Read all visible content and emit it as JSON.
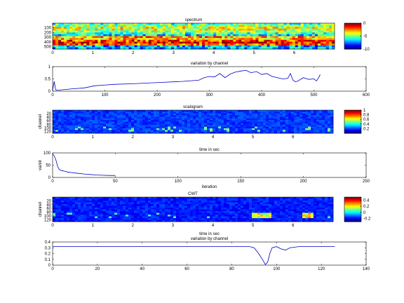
{
  "chart_data": [
    {
      "id": "spectrum",
      "type": "heatmap",
      "title": "spectrum",
      "xlabel": "",
      "ylabel": "",
      "xlim": [
        0,
        7
      ],
      "ylim": [
        0,
        550
      ],
      "xticks": [
        "0",
        "1",
        "2",
        "3",
        "4",
        "5",
        "6"
      ],
      "yticks": [
        "100",
        "200",
        "300",
        "400",
        "500"
      ],
      "colorbar": {
        "ticks": [
          "0",
          "-5",
          "-10"
        ],
        "range": [
          -10,
          0
        ]
      }
    },
    {
      "id": "variation1",
      "type": "line",
      "title": "variation by channel",
      "xlabel": "",
      "ylabel": "",
      "xlim": [
        0,
        600
      ],
      "ylim": [
        0,
        1
      ],
      "xticks": [
        "0",
        "100",
        "200",
        "300",
        "400",
        "500",
        "600"
      ],
      "yticks": [
        "0",
        "0.5",
        "1"
      ],
      "series": [
        {
          "x": [
            0,
            3,
            6,
            10,
            20,
            40,
            60,
            80,
            100,
            120,
            150,
            200,
            250,
            280,
            290,
            300,
            310,
            320,
            330,
            340,
            350,
            360,
            370,
            380,
            390,
            400,
            410,
            420,
            430,
            440,
            450,
            455,
            460,
            465,
            470,
            480,
            490,
            500,
            505,
            510,
            512
          ],
          "y": [
            0.02,
            0.4,
            0.05,
            0.04,
            0.06,
            0.1,
            0.13,
            0.22,
            0.25,
            0.28,
            0.3,
            0.35,
            0.4,
            0.45,
            0.55,
            0.6,
            0.58,
            0.72,
            0.55,
            0.7,
            0.78,
            0.82,
            0.85,
            0.75,
            0.8,
            0.68,
            0.72,
            0.6,
            0.55,
            0.5,
            0.52,
            0.72,
            0.45,
            0.38,
            0.42,
            0.55,
            0.48,
            0.5,
            0.42,
            0.58,
            0.68
          ]
        }
      ]
    },
    {
      "id": "scalogram",
      "type": "heatmap",
      "title": "scalogram",
      "xlabel": "",
      "ylabel": "channel",
      "xlim": [
        0,
        7
      ],
      "ylim": [
        0,
        130
      ],
      "xticks": [
        "0",
        "1",
        "2",
        "3",
        "4",
        "5",
        "6"
      ],
      "yticks": [
        "20",
        "40",
        "60",
        "80",
        "100",
        "120"
      ],
      "colorbar": {
        "ticks": [
          "1",
          "0.8",
          "0.6",
          "0.4",
          "0.2"
        ],
        "range": [
          0,
          1
        ]
      }
    },
    {
      "id": "variation2",
      "type": "line",
      "title": "time in sec",
      "xlabel": "iteration",
      "ylabel": "varint",
      "xlim": [
        0,
        250
      ],
      "ylim": [
        0,
        100
      ],
      "xticks": [
        "0",
        "50",
        "100",
        "150",
        "200",
        "250"
      ],
      "yticks": [
        "0",
        "50",
        "100"
      ],
      "series": [
        {
          "x": [
            0,
            1,
            2,
            3,
            4,
            5,
            6,
            8,
            10,
            12,
            15,
            18,
            20,
            25,
            30,
            35,
            40,
            45,
            50
          ],
          "y": [
            95,
            90,
            80,
            65,
            45,
            35,
            30,
            27,
            25,
            22,
            20,
            18,
            17,
            14,
            12,
            10,
            9,
            8,
            8
          ]
        }
      ]
    },
    {
      "id": "cwt",
      "type": "heatmap",
      "title": "CWT",
      "xlabel": "",
      "ylabel": "channel",
      "xlim": [
        0,
        7
      ],
      "ylim": [
        0,
        130
      ],
      "xticks": [
        "0",
        "1",
        "2",
        "3",
        "4",
        "5",
        "6"
      ],
      "yticks": [
        "20",
        "40",
        "60",
        "80",
        "100",
        "120"
      ],
      "colorbar": {
        "ticks": [
          "0.4",
          "0.2",
          "0",
          "-0.2"
        ],
        "range": [
          -0.3,
          0.5
        ]
      }
    },
    {
      "id": "variation3",
      "type": "line",
      "title": "variation by channel",
      "subtitle": "time in sec",
      "xlabel": "",
      "ylabel": "",
      "xlim": [
        0,
        140
      ],
      "ylim": [
        0,
        0.4
      ],
      "xticks": [
        "0",
        "20",
        "40",
        "60",
        "80",
        "100",
        "120",
        "140"
      ],
      "yticks": [
        "0",
        "0.1",
        "0.2",
        "0.3",
        "0.4"
      ],
      "series": [
        {
          "x": [
            0,
            10,
            20,
            40,
            60,
            80,
            88,
            90,
            92,
            94,
            95,
            96,
            97,
            98,
            100,
            102,
            104,
            106,
            110,
            120,
            126
          ],
          "y": [
            0.32,
            0.32,
            0.32,
            0.32,
            0.32,
            0.32,
            0.32,
            0.3,
            0.2,
            0.08,
            0.01,
            0.05,
            0.2,
            0.3,
            0.32,
            0.28,
            0.26,
            0.3,
            0.32,
            0.32,
            0.32
          ]
        }
      ]
    }
  ]
}
